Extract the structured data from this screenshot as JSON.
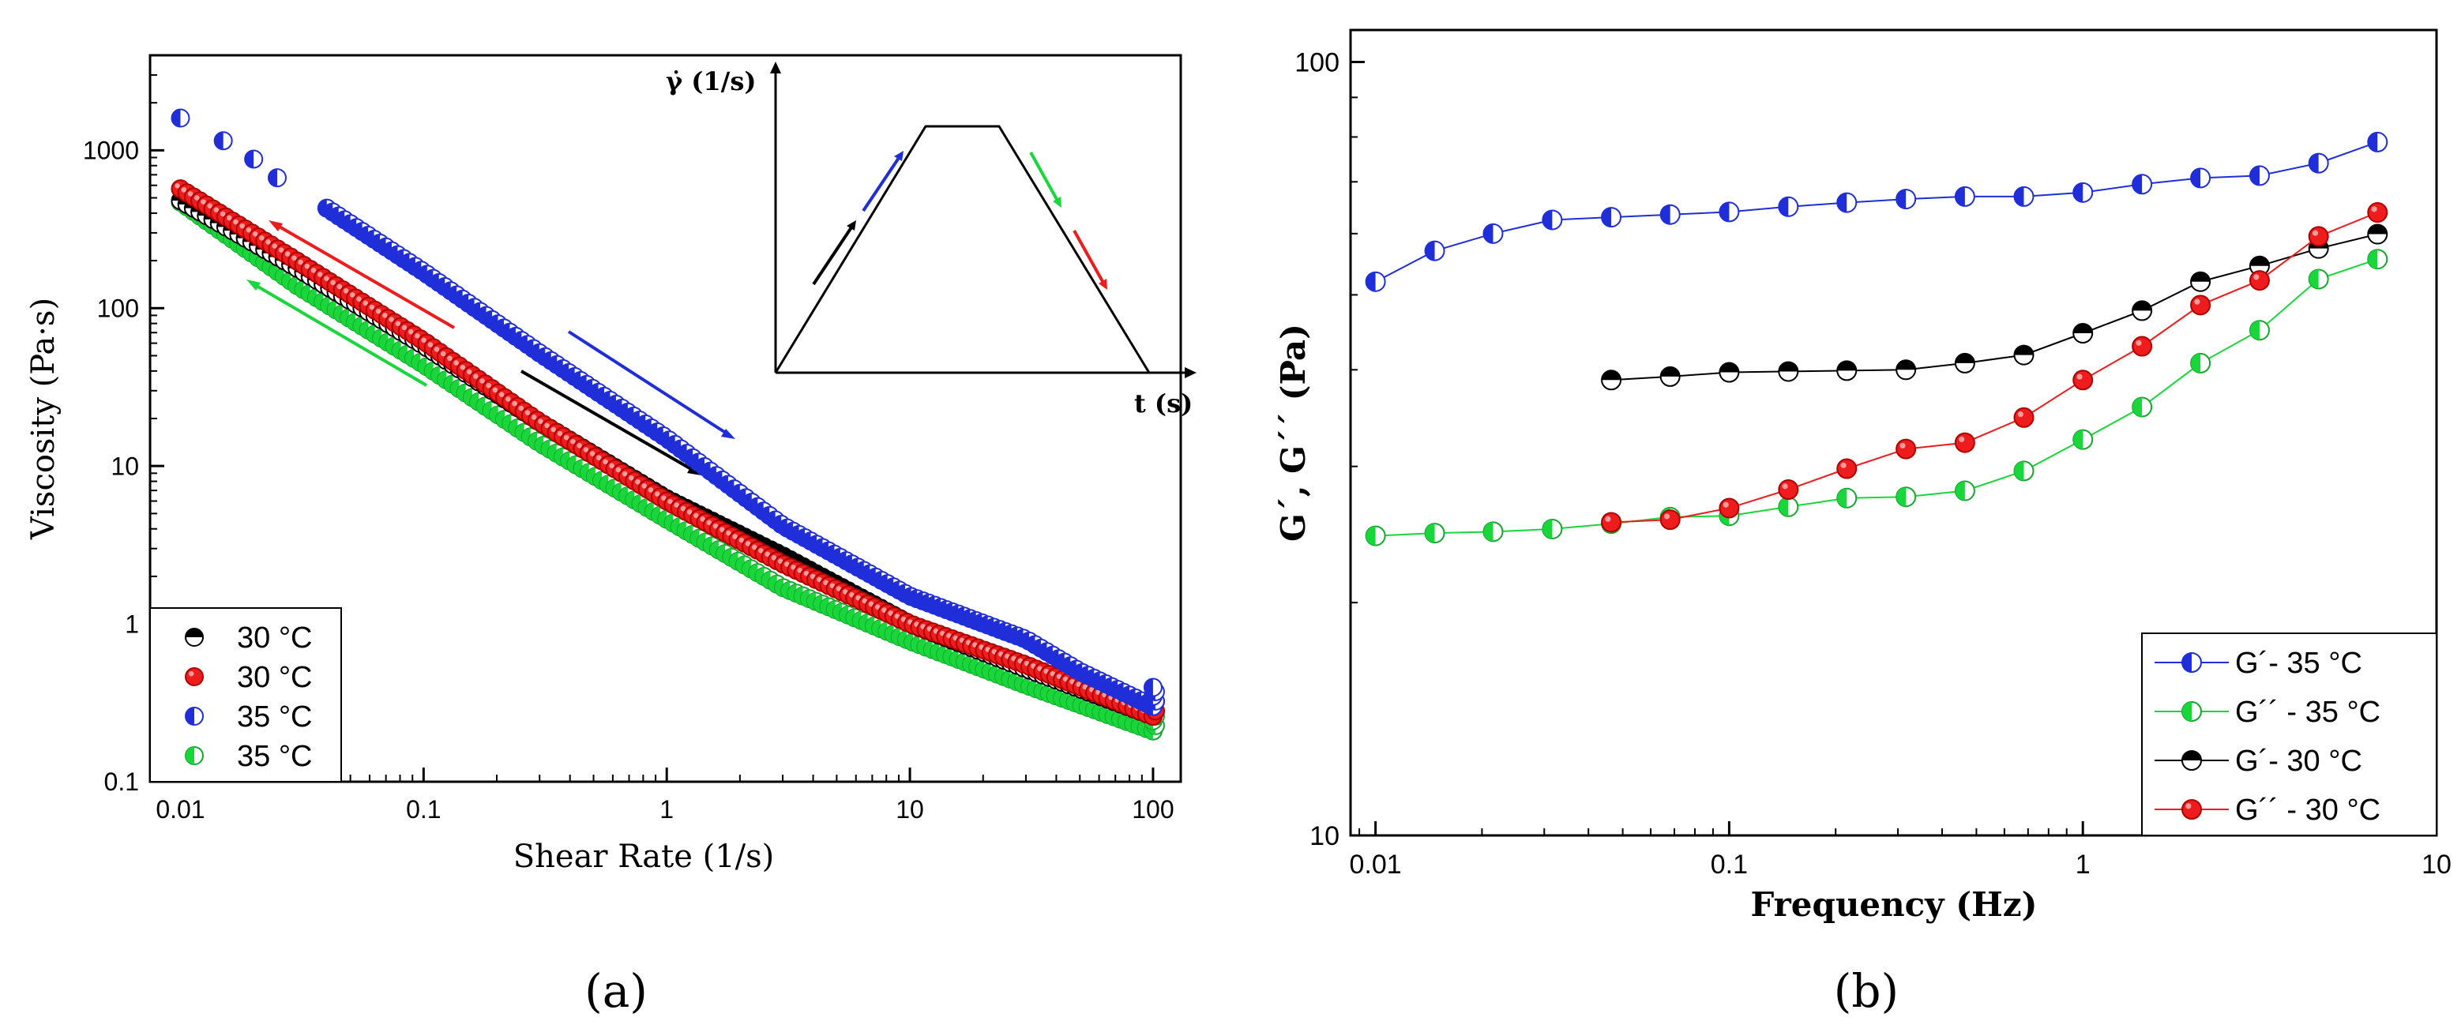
{
  "panel_labels": {
    "a": "(a)",
    "b": "(b)"
  },
  "chart_data": [
    {
      "type": "scatter",
      "panel": "a",
      "title": "",
      "xlabel": "Shear Rate (1/s)",
      "ylabel": "Viscosity (Pa·s)",
      "xscale": "log",
      "yscale": "log",
      "xlim": [
        0.0075,
        130
      ],
      "ylim": [
        0.1,
        4000
      ],
      "xticks": [
        {
          "v": 0.01,
          "label": "0.01"
        },
        {
          "v": 0.1,
          "label": "0.1"
        },
        {
          "v": 1,
          "label": "1"
        },
        {
          "v": 10,
          "label": "10"
        },
        {
          "v": 100,
          "label": "100"
        }
      ],
      "yticks": [
        {
          "v": 0.1,
          "label": "0.1"
        },
        {
          "v": 1,
          "label": "1"
        },
        {
          "v": 10,
          "label": "10"
        },
        {
          "v": 100,
          "label": "100"
        },
        {
          "v": 1000,
          "label": "1000"
        }
      ],
      "series": [
        {
          "name": "30 °C",
          "marker": "half-top-black",
          "color": "#000000",
          "x": [
            0.01,
            0.03,
            0.1,
            0.3,
            1,
            3,
            10,
            30,
            100
          ],
          "y": [
            480,
            180,
            58,
            19,
            6.2,
            2.7,
            1.0,
            0.52,
            0.26
          ]
        },
        {
          "name": "30 °C",
          "marker": "full-red",
          "color": "#ee1c1c",
          "x": [
            0.01,
            0.03,
            0.1,
            0.3,
            1,
            3,
            10,
            30,
            100
          ],
          "y": [
            570,
            200,
            62,
            19,
            6.0,
            2.4,
            1.0,
            0.55,
            0.26
          ]
        },
        {
          "name": "35 °C",
          "marker": "half-left-blue",
          "color": "#1f2ed8",
          "x": [
            0.01,
            0.015,
            0.02,
            0.025,
            0.04,
            0.1,
            0.3,
            1,
            3,
            10,
            30,
            50,
            100
          ],
          "y": [
            1600,
            1150,
            880,
            670,
            430,
            170,
            52,
            15,
            4.2,
            1.5,
            0.8,
            0.5,
            0.3
          ]
        },
        {
          "name": "35 °C",
          "marker": "half-left-green",
          "color": "#19d63a",
          "x": [
            0.01,
            0.03,
            0.1,
            0.3,
            1,
            3,
            10,
            30,
            100
          ],
          "y": [
            470,
            140,
            44,
            14,
            4.6,
            1.7,
            0.78,
            0.41,
            0.21
          ]
        }
      ],
      "legend": {
        "position": "bottom-left",
        "entries": [
          "30 °C",
          "30 °C",
          "35 °C",
          "35 °C"
        ]
      },
      "inset": {
        "ylabel": "γ̇  (1/s)",
        "xlabel": "t (s)"
      }
    },
    {
      "type": "line",
      "panel": "b",
      "title": "",
      "xlabel": "Frequency (Hz)",
      "ylabel": "G´, G´´ (Pa)",
      "xscale": "log",
      "yscale": "log",
      "xlim": [
        0.0085,
        10
      ],
      "ylim": [
        10,
        110
      ],
      "xticks": [
        {
          "v": 0.01,
          "label": "0.01"
        },
        {
          "v": 0.1,
          "label": "0.1"
        },
        {
          "v": 1,
          "label": "1"
        },
        {
          "v": 10,
          "label": "10"
        }
      ],
      "yticks": [
        {
          "v": 10,
          "label": "10"
        },
        {
          "v": 100,
          "label": "100"
        }
      ],
      "series": [
        {
          "name": "G´-   35 °C",
          "marker": "half-left-blue",
          "color": "#1f2ed8",
          "x": [
            0.01,
            0.0147,
            0.0215,
            0.0316,
            0.0464,
            0.0681,
            0.1,
            0.147,
            0.215,
            0.316,
            0.464,
            0.681,
            1,
            1.47,
            2.15,
            3.16,
            4.64,
            6.81
          ],
          "y": [
            52,
            57,
            60,
            62.5,
            63,
            63.5,
            64,
            65,
            65.8,
            66.5,
            67,
            67,
            67.8,
            69.5,
            70.8,
            71.3,
            74,
            78.8
          ]
        },
        {
          "name": "G´´ - 35 °C",
          "marker": "half-left-green",
          "color": "#19d63a",
          "x": [
            0.01,
            0.0147,
            0.0215,
            0.0316,
            0.0464,
            0.0681,
            0.1,
            0.147,
            0.215,
            0.316,
            0.464,
            0.681,
            1,
            1.47,
            2.15,
            3.16,
            4.64,
            6.81
          ],
          "y": [
            24.4,
            24.6,
            24.7,
            24.9,
            25.3,
            25.8,
            25.9,
            26.6,
            27.3,
            27.4,
            27.9,
            29.6,
            32.5,
            35.8,
            40.8,
            45,
            52.4,
            55.6
          ]
        },
        {
          "name": "G´-   30 °C",
          "marker": "half-top-black",
          "color": "#000000",
          "x": [
            0.0464,
            0.0681,
            0.1,
            0.147,
            0.215,
            0.316,
            0.464,
            0.681,
            1,
            1.47,
            2.15,
            3.16,
            4.64,
            6.81
          ],
          "y": [
            38.8,
            39.2,
            39.7,
            39.8,
            39.9,
            40,
            40.8,
            41.8,
            44.6,
            47.7,
            52,
            54.5,
            57.4,
            59.9
          ]
        },
        {
          "name": "G´´ - 30 °C",
          "marker": "full-red",
          "color": "#ee1c1c",
          "x": [
            0.0464,
            0.0681,
            0.1,
            0.147,
            0.215,
            0.316,
            0.464,
            0.681,
            1,
            1.47,
            2.15,
            3.16,
            4.64,
            6.81
          ],
          "y": [
            25.4,
            25.6,
            26.5,
            28,
            29.8,
            31.6,
            32.2,
            34.7,
            38.8,
            42.9,
            48.5,
            52.2,
            59.5,
            63.9
          ]
        }
      ],
      "legend": {
        "position": "bottom-right",
        "entries": [
          "G´-   35 °C",
          "G´´ - 35 °C",
          "G´-   30 °C",
          "G´´ - 30 °C"
        ]
      }
    }
  ]
}
